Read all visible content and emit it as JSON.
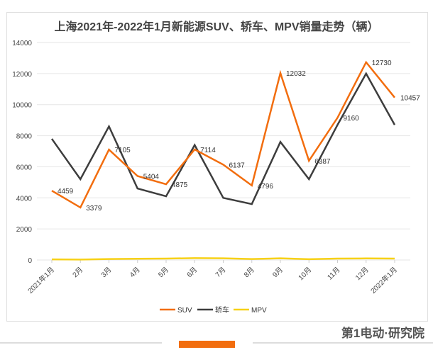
{
  "chart_data": {
    "type": "line",
    "title": "上海2021年-2022年1月新能源SUV、轿车、MPV销量走势（辆）",
    "categories": [
      "2021年1月",
      "2月",
      "3月",
      "4月",
      "5月",
      "6月",
      "7月",
      "8月",
      "9月",
      "10月",
      "11月",
      "12月",
      "2022年1月"
    ],
    "ylim": [
      0,
      14000
    ],
    "yticks": [
      0,
      2000,
      4000,
      6000,
      8000,
      10000,
      12000,
      14000
    ],
    "grid": true,
    "legend": "bottom",
    "series": [
      {
        "name": "SUV",
        "color": "#f26d0e",
        "values": [
          4459,
          3379,
          7105,
          5404,
          4875,
          7114,
          6137,
          4796,
          12032,
          6387,
          9160,
          12730,
          10457
        ],
        "labeled": true
      },
      {
        "name": "轿车",
        "color": "#3d3d3d",
        "values": [
          7800,
          5200,
          8600,
          4600,
          4100,
          7400,
          4000,
          3600,
          7600,
          5200,
          8700,
          12000,
          8700
        ],
        "labeled": false
      },
      {
        "name": "MPV",
        "color": "#f7d117",
        "values": [
          40,
          30,
          60,
          80,
          90,
          120,
          110,
          60,
          110,
          50,
          90,
          100,
          90
        ],
        "labeled": false
      }
    ]
  },
  "footer": {
    "brand": "第1电动·研究院"
  }
}
